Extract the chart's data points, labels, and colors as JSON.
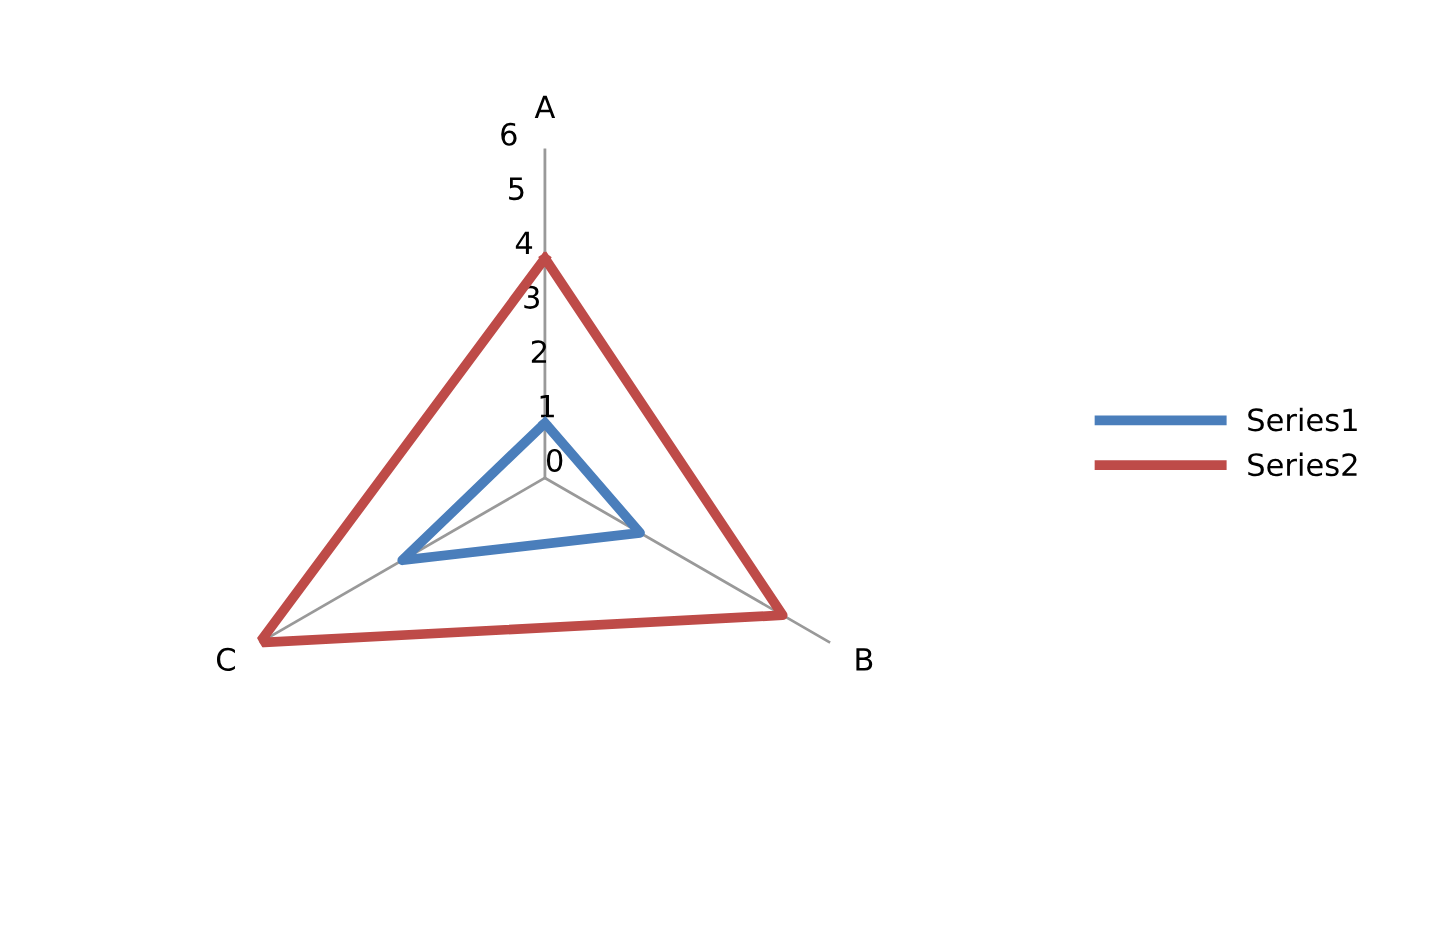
{
  "chart_data": {
    "type": "radar",
    "categories": [
      "A",
      "B",
      "C"
    ],
    "series": [
      {
        "name": "Series1",
        "color": "#4a7ebb",
        "values": [
          1,
          2,
          3
        ]
      },
      {
        "name": "Series2",
        "color": "#be4b48",
        "values": [
          4,
          5,
          6
        ]
      }
    ],
    "ylim": [
      0,
      6
    ],
    "yticks": [
      0,
      1,
      2,
      3,
      4,
      5,
      6
    ],
    "grid": "x",
    "legend": "right",
    "marker": "none",
    "line_style": "solid"
  }
}
